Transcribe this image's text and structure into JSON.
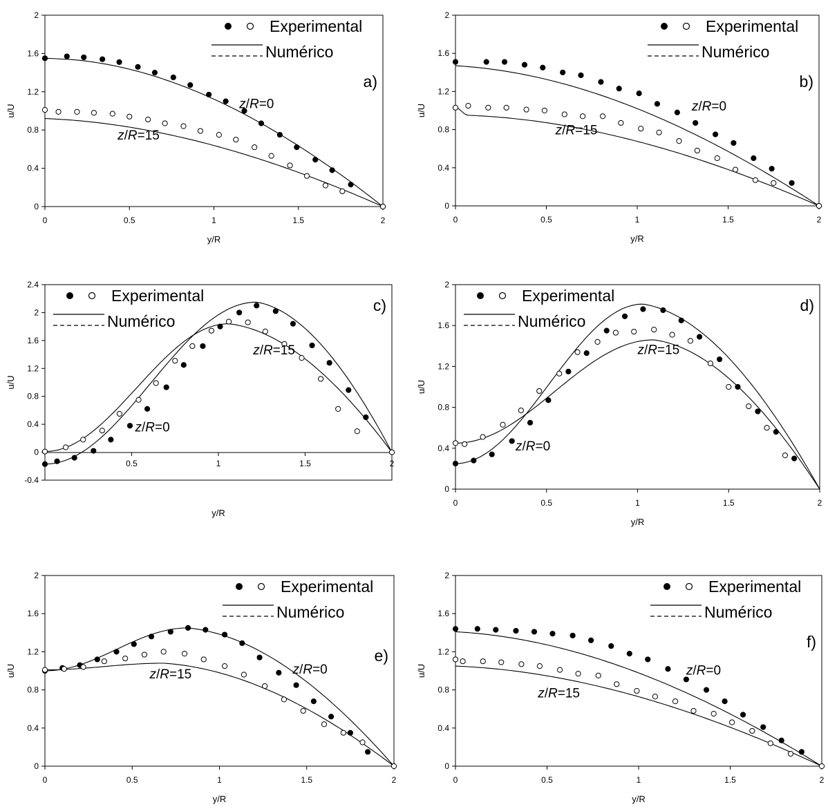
{
  "chart_data": [
    {
      "type": "line",
      "tag": "a)",
      "xlabel": "y/R",
      "ylabel": "u/U",
      "xlim": [
        0,
        2
      ],
      "ylim": [
        0,
        2
      ],
      "xticks": [
        "0",
        "0.5",
        "1",
        "1.5",
        "2"
      ],
      "yticks": [
        "0",
        "0.4",
        "0.8",
        "1.2",
        "1.6",
        "2"
      ],
      "legend": {
        "markers_label": "Experimental",
        "lines_label": "Numérico",
        "placement": "top-right"
      },
      "curve_labels": [
        {
          "text": "z/R=0",
          "at": [
            1.15,
            1.03
          ]
        },
        {
          "text": "z/R=15",
          "at": [
            0.43,
            0.7
          ]
        }
      ],
      "series": [
        {
          "name": "z/R=0",
          "style": "filled",
          "x": [
            0,
            0.13,
            0.23,
            0.34,
            0.44,
            0.55,
            0.65,
            0.76,
            0.86,
            0.97,
            1.07,
            1.18,
            1.28,
            1.39,
            1.49,
            1.6,
            1.7,
            1.81,
            2
          ],
          "y": [
            1.55,
            1.57,
            1.56,
            1.54,
            1.51,
            1.46,
            1.4,
            1.35,
            1.27,
            1.17,
            1.1,
            1.0,
            0.87,
            0.75,
            0.62,
            0.49,
            0.38,
            0.23,
            0
          ],
          "numeric_peak": 1.54
        },
        {
          "name": "z/R=15",
          "style": "open",
          "x": [
            0,
            0.08,
            0.19,
            0.29,
            0.4,
            0.5,
            0.61,
            0.71,
            0.82,
            0.92,
            1.03,
            1.13,
            1.24,
            1.34,
            1.45,
            1.55,
            1.66,
            1.76,
            2
          ],
          "y": [
            1.01,
            0.99,
            0.99,
            0.98,
            0.97,
            0.94,
            0.91,
            0.87,
            0.84,
            0.79,
            0.75,
            0.7,
            0.62,
            0.53,
            0.43,
            0.32,
            0.22,
            0.16,
            0
          ],
          "numeric_peak": 0.92
        }
      ]
    },
    {
      "type": "line",
      "tag": "b)",
      "xlabel": "y/R",
      "ylabel": "u/U",
      "xlim": [
        0,
        2
      ],
      "ylim": [
        0,
        2
      ],
      "xticks": [
        "0",
        "0.5",
        "1",
        "1.5",
        "2"
      ],
      "yticks": [
        "0",
        "0.4",
        "0.8",
        "1.2",
        "1.6",
        "2"
      ],
      "legend": {
        "markers_label": "Experimental",
        "lines_label": "Numérico",
        "placement": "top-right"
      },
      "curve_labels": [
        {
          "text": "z/R=0",
          "at": [
            1.3,
            1.0
          ]
        },
        {
          "text": "z/R=15",
          "at": [
            0.55,
            0.75
          ]
        }
      ],
      "series": [
        {
          "name": "z/R=0",
          "style": "filled",
          "x": [
            0,
            0.17,
            0.27,
            0.38,
            0.48,
            0.59,
            0.69,
            0.8,
            0.9,
            1.01,
            1.11,
            1.22,
            1.32,
            1.43,
            1.53,
            1.64,
            1.74,
            1.85,
            2
          ],
          "y": [
            1.51,
            1.51,
            1.51,
            1.48,
            1.45,
            1.4,
            1.37,
            1.3,
            1.23,
            1.18,
            1.07,
            0.98,
            0.87,
            0.75,
            0.66,
            0.5,
            0.39,
            0.24,
            0
          ],
          "numeric_peak": 1.47
        },
        {
          "name": "z/R=15",
          "style": "open",
          "x": [
            0,
            0.07,
            0.18,
            0.28,
            0.39,
            0.49,
            0.6,
            0.7,
            0.81,
            0.91,
            1.02,
            1.12,
            1.23,
            1.33,
            1.44,
            1.54,
            1.65,
            1.75,
            2
          ],
          "y": [
            1.03,
            1.05,
            1.03,
            1.03,
            1.01,
            1.0,
            0.96,
            0.94,
            0.94,
            0.87,
            0.81,
            0.77,
            0.68,
            0.58,
            0.5,
            0.38,
            0.27,
            0.24,
            0
          ],
          "numeric_peak": 0.95
        }
      ]
    },
    {
      "type": "line",
      "tag": "c)",
      "xlabel": "y/R",
      "ylabel": "u/U",
      "xlim": [
        0,
        2
      ],
      "ylim": [
        -0.4,
        2.4
      ],
      "xticks": [
        "0.5",
        "1",
        "1.5",
        "2"
      ],
      "yticks": [
        "-0.4",
        "0",
        "0.4",
        "0.8",
        "1.2",
        "1.6",
        "2",
        "2.4"
      ],
      "legend": {
        "markers_label": "Experimental",
        "lines_label": "Numérico",
        "placement": "top-left"
      },
      "curve_labels": [
        {
          "text": "z/R=0",
          "at": [
            0.52,
            0.3
          ]
        },
        {
          "text": "z/R=15",
          "at": [
            1.2,
            1.4
          ]
        }
      ],
      "series": [
        {
          "name": "z/R=0",
          "style": "filled",
          "x": [
            0,
            0.07,
            0.17,
            0.28,
            0.38,
            0.49,
            0.59,
            0.7,
            0.8,
            0.91,
            1.01,
            1.12,
            1.22,
            1.33,
            1.43,
            1.54,
            1.64,
            1.75,
            1.85
          ],
          "y": [
            -0.17,
            -0.13,
            -0.08,
            0.02,
            0.18,
            0.38,
            0.62,
            0.93,
            1.25,
            1.52,
            1.8,
            2.0,
            2.1,
            2.02,
            1.84,
            1.53,
            1.28,
            0.89,
            0.5
          ],
          "numeric_peak": 2.15
        },
        {
          "name": "z/R=15",
          "style": "open",
          "x": [
            0,
            0.12,
            0.22,
            0.33,
            0.43,
            0.54,
            0.64,
            0.75,
            0.85,
            0.96,
            1.06,
            1.17,
            1.27,
            1.38,
            1.48,
            1.59,
            1.69,
            1.8,
            2
          ],
          "y": [
            0.01,
            0.07,
            0.18,
            0.31,
            0.55,
            0.75,
            0.99,
            1.31,
            1.52,
            1.74,
            1.87,
            1.86,
            1.73,
            1.55,
            1.35,
            1.05,
            0.62,
            0.3,
            0
          ],
          "numeric_peak": 1.84
        }
      ]
    },
    {
      "type": "line",
      "tag": "d)",
      "xlabel": "y/R",
      "ylabel": "u/U",
      "xlim": [
        0,
        2
      ],
      "ylim": [
        0,
        2
      ],
      "xticks": [
        "0",
        "0.5",
        "1",
        "1.5",
        "2"
      ],
      "yticks": [
        "0",
        "0.4",
        "0.8",
        "1.2",
        "1.6",
        "2"
      ],
      "legend": {
        "markers_label": "Experimental",
        "lines_label": "Numérico",
        "placement": "top-left"
      },
      "curve_labels": [
        {
          "text": "z/R=0",
          "at": [
            0.33,
            0.38
          ]
        },
        {
          "text": "z/R=15",
          "at": [
            1.0,
            1.32
          ]
        }
      ],
      "series": [
        {
          "name": "z/R=0",
          "style": "filled",
          "x": [
            0,
            0.1,
            0.2,
            0.31,
            0.41,
            0.51,
            0.62,
            0.72,
            0.83,
            0.93,
            1.03,
            1.14,
            1.24,
            1.34,
            1.45,
            1.55,
            1.66,
            1.76,
            1.86
          ],
          "y": [
            0.25,
            0.28,
            0.34,
            0.47,
            0.65,
            0.87,
            1.15,
            1.33,
            1.55,
            1.69,
            1.76,
            1.75,
            1.65,
            1.49,
            1.27,
            1.0,
            0.76,
            0.56,
            0.3
          ],
          "numeric_peak": 1.81
        },
        {
          "name": "z/R=15",
          "style": "open",
          "x": [
            0,
            0.05,
            0.15,
            0.26,
            0.36,
            0.46,
            0.57,
            0.67,
            0.78,
            0.88,
            0.98,
            1.09,
            1.19,
            1.29,
            1.4,
            1.5,
            1.61,
            1.71,
            1.81
          ],
          "y": [
            0.45,
            0.44,
            0.51,
            0.63,
            0.77,
            0.96,
            1.13,
            1.34,
            1.44,
            1.53,
            1.54,
            1.56,
            1.51,
            1.45,
            1.23,
            1.0,
            0.81,
            0.6,
            0.33
          ],
          "numeric_peak": 1.46
        }
      ]
    },
    {
      "type": "line",
      "tag": "e)",
      "xlabel": "y/R",
      "ylabel": "u/U",
      "xlim": [
        0,
        2
      ],
      "ylim": [
        0,
        2
      ],
      "xticks": [
        "0",
        "0.5",
        "1",
        "1.5",
        "2"
      ],
      "yticks": [
        "0",
        "0.4",
        "0.8",
        "1.2",
        "1.6",
        "2"
      ],
      "legend": {
        "markers_label": "Experimental",
        "lines_label": "Numérico",
        "placement": "top-right"
      },
      "curve_labels": [
        {
          "text": "z/R=0",
          "at": [
            1.42,
            0.97
          ]
        },
        {
          "text": "z/R=15",
          "at": [
            0.6,
            0.92
          ]
        }
      ],
      "series": [
        {
          "name": "z/R=0",
          "style": "filled",
          "x": [
            0,
            0.1,
            0.2,
            0.3,
            0.41,
            0.51,
            0.61,
            0.72,
            0.82,
            0.92,
            1.03,
            1.13,
            1.23,
            1.34,
            1.44,
            1.54,
            1.64,
            1.75,
            1.85
          ],
          "y": [
            1.0,
            1.03,
            1.06,
            1.12,
            1.2,
            1.28,
            1.36,
            1.41,
            1.45,
            1.43,
            1.38,
            1.29,
            1.14,
            0.98,
            0.85,
            0.68,
            0.52,
            0.35,
            0.15
          ],
          "numeric_peak": 1.45
        },
        {
          "name": "z/R=15",
          "style": "open",
          "x": [
            0,
            0.11,
            0.22,
            0.34,
            0.46,
            0.57,
            0.68,
            0.8,
            0.91,
            1.03,
            1.14,
            1.26,
            1.37,
            1.48,
            1.6,
            1.71,
            1.82,
            2
          ],
          "y": [
            1.01,
            1.02,
            1.04,
            1.1,
            1.13,
            1.17,
            1.2,
            1.18,
            1.12,
            1.05,
            0.96,
            0.84,
            0.7,
            0.58,
            0.44,
            0.35,
            0.25,
            0
          ],
          "numeric_peak": 1.08
        }
      ]
    },
    {
      "type": "line",
      "tag": "f)",
      "xlabel": "y/R",
      "ylabel": "u/U",
      "xlim": [
        0,
        2
      ],
      "ylim": [
        0,
        2
      ],
      "xticks": [
        "0",
        "0.5",
        "1",
        "1.5",
        "2"
      ],
      "yticks": [
        "0",
        "0.4",
        "0.8",
        "1.2",
        "1.6",
        "2"
      ],
      "legend": {
        "markers_label": "Experimental",
        "lines_label": "Numérico",
        "placement": "top-right"
      },
      "curve_labels": [
        {
          "text": "z/R=0",
          "at": [
            1.26,
            0.96
          ]
        },
        {
          "text": "z/R=15",
          "at": [
            0.45,
            0.72
          ]
        }
      ],
      "series": [
        {
          "name": "z/R=0",
          "style": "filled",
          "x": [
            0,
            0.12,
            0.22,
            0.33,
            0.43,
            0.53,
            0.64,
            0.74,
            0.85,
            0.95,
            1.05,
            1.16,
            1.26,
            1.37,
            1.47,
            1.57,
            1.68,
            1.78,
            1.89
          ],
          "y": [
            1.44,
            1.44,
            1.43,
            1.42,
            1.41,
            1.39,
            1.37,
            1.32,
            1.26,
            1.18,
            1.12,
            1.02,
            0.91,
            0.8,
            0.68,
            0.54,
            0.41,
            0.27,
            0.15
          ],
          "numeric_peak": 1.41
        },
        {
          "name": "z/R=15",
          "style": "open",
          "x": [
            0,
            0.04,
            0.15,
            0.25,
            0.36,
            0.46,
            0.57,
            0.67,
            0.78,
            0.88,
            0.99,
            1.09,
            1.2,
            1.3,
            1.41,
            1.51,
            1.62,
            1.72,
            1.83,
            2
          ],
          "y": [
            1.12,
            1.1,
            1.1,
            1.09,
            1.07,
            1.05,
            1.01,
            0.97,
            0.95,
            0.86,
            0.79,
            0.73,
            0.68,
            0.58,
            0.55,
            0.46,
            0.37,
            0.24,
            0.13,
            0
          ],
          "numeric_peak": 1.05
        }
      ]
    }
  ]
}
